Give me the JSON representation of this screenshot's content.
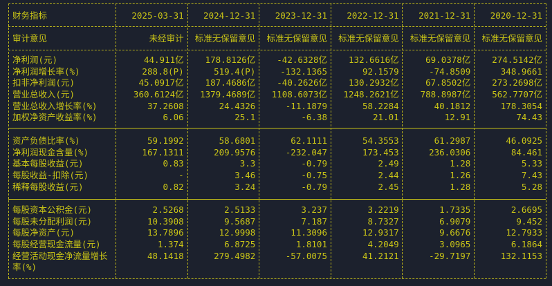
{
  "header": {
    "label": "财务指标",
    "periods": [
      "2025-03-31",
      "2024-12-31",
      "2023-12-31",
      "2022-12-31",
      "2021-12-31",
      "2020-12-31"
    ]
  },
  "audit": {
    "label": "审计意见",
    "values": [
      "未经审计",
      "标准无保留意见",
      "标准无保留意见",
      "标准无保留意见",
      "标准无保留意见",
      "标准无保留意见"
    ]
  },
  "sections": [
    [
      {
        "label": "净利润(元)",
        "values": [
          "44.911亿",
          "178.8126亿",
          "-42.6328亿",
          "132.6616亿",
          "69.0378亿",
          "274.5142亿"
        ]
      },
      {
        "label": "净利润增长率(%)",
        "values": [
          "288.8(P)",
          "519.4(P)",
          "-132.1365",
          "92.1579",
          "-74.8509",
          "348.9661"
        ]
      },
      {
        "label": "扣非净利润(元)",
        "values": [
          "45.0917亿",
          "187.4686亿",
          "-40.2626亿",
          "130.2932亿",
          "67.8502亿",
          "273.2698亿"
        ]
      },
      {
        "label": "营业总收入(元)",
        "values": [
          "360.6124亿",
          "1379.4689亿",
          "1108.6073亿",
          "1248.2621亿",
          "788.8987亿",
          "562.7707亿"
        ]
      },
      {
        "label": "营业总收入增长率(%)",
        "values": [
          "37.2608",
          "24.4326",
          "-11.1879",
          "58.2284",
          "40.1812",
          "178.3054"
        ]
      },
      {
        "label": "加权净资产收益率(%)",
        "values": [
          "6.06",
          "25.1",
          "-6.38",
          "21.01",
          "12.91",
          "74.43"
        ]
      }
    ],
    [
      {
        "label": "资产负债比率(%)",
        "values": [
          "59.1992",
          "58.6801",
          "62.1111",
          "54.3553",
          "61.2987",
          "46.0925"
        ]
      },
      {
        "label": "净利润现金含量(%)",
        "values": [
          "167.1311",
          "209.9576",
          "-232.047",
          "173.453",
          "236.0306",
          "84.461"
        ]
      },
      {
        "label": "基本每股收益(元)",
        "values": [
          "0.83",
          "3.3",
          "-0.79",
          "2.49",
          "1.28",
          "5.33"
        ]
      },
      {
        "label": "每股收益-扣除(元)",
        "values": [
          "-",
          "3.46",
          "-0.75",
          "2.44",
          "1.26",
          "7.43"
        ]
      },
      {
        "label": "稀释每股收益(元)",
        "values": [
          "0.82",
          "3.24",
          "-0.79",
          "2.45",
          "1.28",
          "5.28"
        ]
      }
    ],
    [
      {
        "label": "每股资本公积金(元)",
        "values": [
          "2.5268",
          "2.5133",
          "3.237",
          "3.2219",
          "1.7335",
          "2.6695"
        ]
      },
      {
        "label": "每股未分配利润(元)",
        "values": [
          "10.3908",
          "9.5687",
          "7.187",
          "8.7327",
          "6.9079",
          "9.452"
        ]
      },
      {
        "label": "每股净资产(元)",
        "values": [
          "13.7896",
          "12.9998",
          "11.3096",
          "12.9317",
          "9.6676",
          "12.7933"
        ]
      },
      {
        "label": "每股经营现金流量(元)",
        "values": [
          "1.374",
          "6.8725",
          "1.8101",
          "4.2049",
          "3.0965",
          "6.1864"
        ]
      },
      {
        "label": "经营活动现金净流量增长率(%)",
        "values": [
          "48.1418",
          "279.4982",
          "-57.0075",
          "41.2121",
          "-29.7197",
          "132.1153"
        ]
      }
    ]
  ]
}
